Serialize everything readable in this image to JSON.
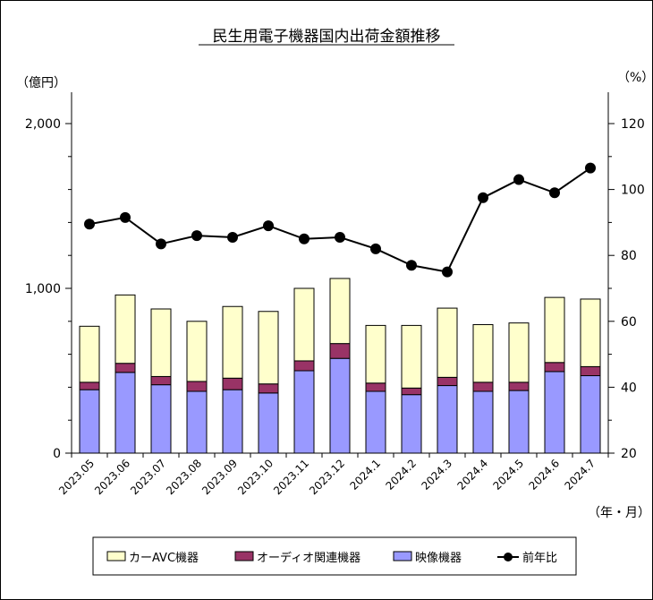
{
  "chart_data": {
    "type": "bar",
    "stacked": true,
    "title": "民生用電子機器国内出荷金額推移",
    "left_axis_unit": "（億円）",
    "right_axis_unit": "（%）",
    "x_axis_unit": "（年・月）",
    "categories": [
      "2023.05",
      "2023.06",
      "2023.07",
      "2023.08",
      "2023.09",
      "2023.10",
      "2023.11",
      "2023.12",
      "2024.1",
      "2024.2",
      "2024.3",
      "2024.4",
      "2024.5",
      "2024.6",
      "2024.7"
    ],
    "left_axis": {
      "ylim": [
        0,
        2000
      ],
      "ticks": [
        0,
        1000,
        2000
      ],
      "tick_labels": [
        "0",
        "1,000",
        "2,000"
      ]
    },
    "right_axis": {
      "ylim": [
        20,
        120
      ],
      "ticks": [
        20,
        40,
        60,
        80,
        100,
        120
      ],
      "tick_labels": [
        "20",
        "40",
        "60",
        "80",
        "100",
        "120"
      ]
    },
    "series": [
      {
        "name": "映像機器",
        "kind": "bar",
        "color": "#9999ff",
        "values": [
          385,
          490,
          415,
          375,
          385,
          365,
          500,
          575,
          375,
          355,
          410,
          375,
          380,
          495,
          470
        ]
      },
      {
        "name": "オーディオ関連機器",
        "kind": "bar",
        "color": "#993366",
        "values": [
          45,
          55,
          50,
          60,
          70,
          55,
          60,
          90,
          50,
          40,
          50,
          55,
          50,
          55,
          55
        ]
      },
      {
        "name": "カーAVC機器",
        "kind": "bar",
        "color": "#ffffcc",
        "values": [
          340,
          415,
          410,
          365,
          435,
          440,
          440,
          395,
          350,
          380,
          420,
          350,
          360,
          395,
          410
        ]
      },
      {
        "name": "前年比",
        "kind": "line",
        "axis": "right",
        "color": "#000000",
        "values": [
          89.5,
          91.5,
          83.5,
          86,
          85.5,
          89,
          85,
          85.5,
          82,
          77,
          75,
          97.5,
          103,
          99,
          106.5
        ]
      }
    ],
    "legend": {
      "placement": "bottom",
      "entries": [
        "カーAVC機器",
        "オーディオ関連機器",
        "映像機器",
        "前年比"
      ]
    },
    "grid": false
  }
}
